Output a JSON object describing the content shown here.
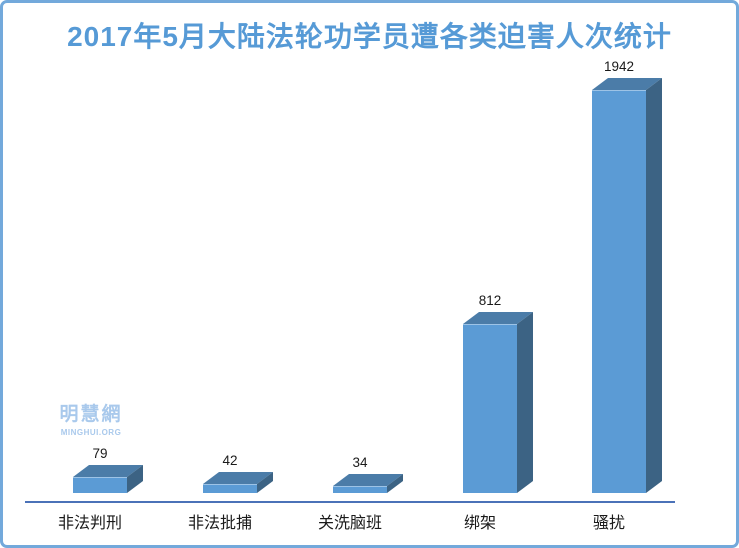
{
  "title": "2017年5月大陆法轮功学员遭各类迫害人次统计",
  "watermark": {
    "name_cn": "明慧網",
    "name_en": "MINGHUI.ORG"
  },
  "chart_data": {
    "type": "bar",
    "title": "2017年5月大陆法轮功学员遭各类迫害人次统计",
    "categories": [
      "非法判刑",
      "非法批捕",
      "关洗脑班",
      "绑架",
      "骚扰"
    ],
    "values": [
      79,
      42,
      34,
      812,
      1942
    ],
    "data_labels": [
      "79",
      "42",
      "34",
      "812",
      "1942"
    ],
    "xlabel": "",
    "ylabel": "",
    "ylim": [
      0,
      1942
    ],
    "grid": false,
    "legend": false,
    "style": "3d-column",
    "colors": {
      "bar_front": "#5B9BD5",
      "bar_top": "#4B7CA8",
      "bar_side": "#3C6384",
      "bar_edge": "#9DC3E6",
      "axis_line": "#4B72B8",
      "title_text": "#569AD6",
      "label_text": "#1A1A1A",
      "watermark": "#A9C9EC",
      "frame_border": "#73A9DB"
    }
  }
}
